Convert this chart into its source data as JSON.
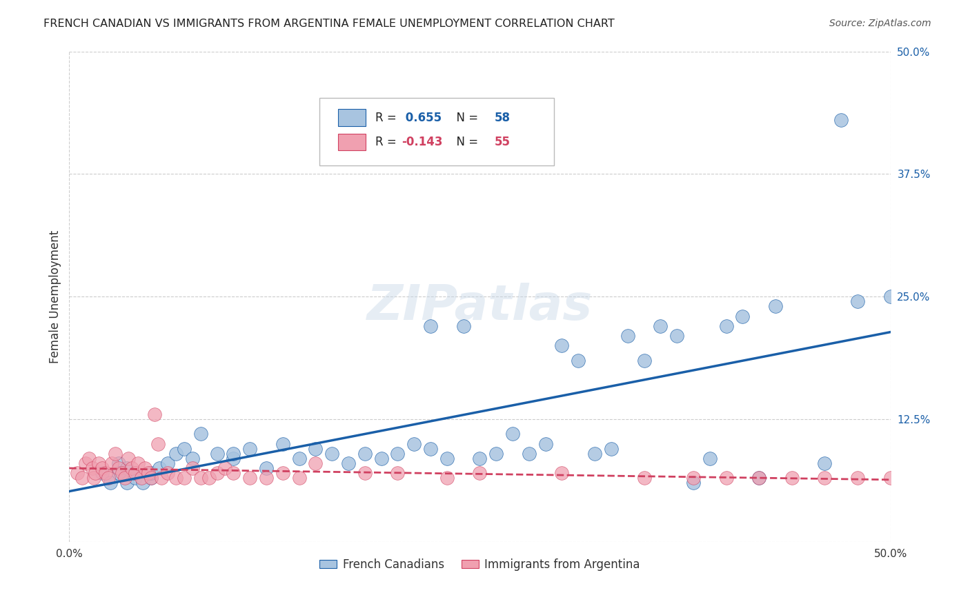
{
  "title": "FRENCH CANADIAN VS IMMIGRANTS FROM ARGENTINA FEMALE UNEMPLOYMENT CORRELATION CHART",
  "source": "Source: ZipAtlas.com",
  "ylabel": "Female Unemployment",
  "xlim": [
    0.0,
    0.5
  ],
  "ylim": [
    0.0,
    0.5
  ],
  "yticks": [
    0.0,
    0.125,
    0.25,
    0.375,
    0.5
  ],
  "ytick_labels": [
    "",
    "12.5%",
    "25.0%",
    "37.5%",
    "50.0%"
  ],
  "blue_R": 0.655,
  "blue_N": 58,
  "pink_R": -0.143,
  "pink_N": 55,
  "blue_color": "#a8c4e0",
  "blue_line_color": "#1a5fa8",
  "pink_color": "#f0a0b0",
  "pink_line_color": "#d04060",
  "legend_blue_label": "French Canadians",
  "legend_pink_label": "Immigrants from Argentina",
  "watermark": "ZIPatlas",
  "blue_scatter_x": [
    0.02,
    0.025,
    0.03,
    0.03,
    0.035,
    0.035,
    0.04,
    0.04,
    0.045,
    0.05,
    0.05,
    0.055,
    0.06,
    0.065,
    0.07,
    0.075,
    0.08,
    0.09,
    0.1,
    0.1,
    0.11,
    0.12,
    0.13,
    0.14,
    0.15,
    0.16,
    0.17,
    0.18,
    0.19,
    0.2,
    0.21,
    0.22,
    0.22,
    0.23,
    0.24,
    0.25,
    0.26,
    0.27,
    0.28,
    0.29,
    0.3,
    0.31,
    0.32,
    0.33,
    0.34,
    0.35,
    0.36,
    0.37,
    0.38,
    0.39,
    0.4,
    0.41,
    0.42,
    0.43,
    0.46,
    0.47,
    0.48,
    0.5
  ],
  "blue_scatter_y": [
    0.07,
    0.06,
    0.08,
    0.07,
    0.06,
    0.075,
    0.065,
    0.07,
    0.06,
    0.065,
    0.07,
    0.075,
    0.08,
    0.09,
    0.095,
    0.085,
    0.11,
    0.09,
    0.085,
    0.09,
    0.095,
    0.075,
    0.1,
    0.085,
    0.095,
    0.09,
    0.08,
    0.09,
    0.085,
    0.09,
    0.1,
    0.095,
    0.22,
    0.085,
    0.22,
    0.085,
    0.09,
    0.11,
    0.09,
    0.1,
    0.2,
    0.185,
    0.09,
    0.095,
    0.21,
    0.185,
    0.22,
    0.21,
    0.06,
    0.085,
    0.22,
    0.23,
    0.065,
    0.24,
    0.08,
    0.43,
    0.245,
    0.25
  ],
  "pink_scatter_x": [
    0.005,
    0.008,
    0.01,
    0.012,
    0.014,
    0.015,
    0.016,
    0.018,
    0.02,
    0.022,
    0.024,
    0.026,
    0.028,
    0.03,
    0.032,
    0.034,
    0.036,
    0.038,
    0.04,
    0.042,
    0.044,
    0.046,
    0.048,
    0.05,
    0.052,
    0.054,
    0.056,
    0.06,
    0.065,
    0.07,
    0.075,
    0.08,
    0.085,
    0.09,
    0.095,
    0.1,
    0.11,
    0.12,
    0.13,
    0.14,
    0.15,
    0.18,
    0.2,
    0.23,
    0.25,
    0.3,
    0.35,
    0.38,
    0.4,
    0.42,
    0.44,
    0.46,
    0.48,
    0.5,
    0.52
  ],
  "pink_scatter_y": [
    0.07,
    0.065,
    0.08,
    0.085,
    0.075,
    0.065,
    0.07,
    0.08,
    0.075,
    0.07,
    0.065,
    0.08,
    0.09,
    0.075,
    0.07,
    0.065,
    0.085,
    0.075,
    0.07,
    0.08,
    0.065,
    0.075,
    0.07,
    0.065,
    0.13,
    0.1,
    0.065,
    0.07,
    0.065,
    0.065,
    0.075,
    0.065,
    0.065,
    0.07,
    0.075,
    0.07,
    0.065,
    0.065,
    0.07,
    0.065,
    0.08,
    0.07,
    0.07,
    0.065,
    0.07,
    0.07,
    0.065,
    0.065,
    0.065,
    0.065,
    0.065,
    0.065,
    0.065,
    0.065,
    0.065
  ]
}
